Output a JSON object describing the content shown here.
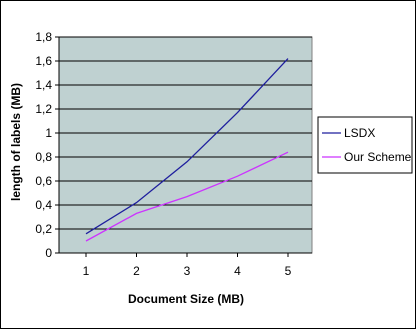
{
  "chart_data": {
    "type": "line",
    "title": "",
    "xlabel": "Document Size (MB)",
    "ylabel": "length of labels (MB)",
    "categories": [
      "1",
      "2",
      "3",
      "4",
      "5"
    ],
    "x": [
      1,
      2,
      3,
      4,
      5
    ],
    "ylim": [
      0,
      1.8
    ],
    "yticks": [
      0,
      0.2,
      0.4,
      0.6,
      0.8,
      1,
      1.2,
      1.4,
      1.6,
      1.8
    ],
    "ytick_labels": [
      "0",
      "0,2",
      "0,4",
      "0,6",
      "0,8",
      "1",
      "1,2",
      "1,4",
      "1,6",
      "1,8"
    ],
    "grid": "horizontal",
    "plot_background": "#bfd1d1",
    "legend": "right",
    "series": [
      {
        "name": "LSDX",
        "color": "#1f1f9e",
        "values": [
          0.16,
          0.42,
          0.76,
          1.17,
          1.62
        ]
      },
      {
        "name": "Our Scheme",
        "color": "#cc33ff",
        "values": [
          0.1,
          0.33,
          0.47,
          0.64,
          0.84
        ]
      }
    ]
  }
}
